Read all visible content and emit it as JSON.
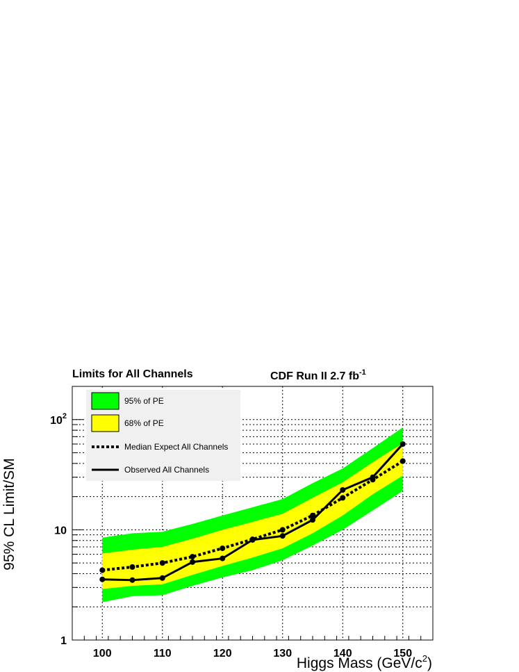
{
  "chart_data": {
    "type": "line",
    "title_left": "Limits for All Channels",
    "title_right": "CDF Run II  2.7 fb",
    "title_right_sup": "-1",
    "xlabel": "Higgs Mass (GeV/c",
    "xlabel_sup": "2",
    "xlabel_end": ")",
    "ylabel": "95% CL Limit/SM",
    "xlim": [
      95,
      155
    ],
    "ylim": [
      1,
      200
    ],
    "ylog": true,
    "grid": true,
    "x_ticks": [
      100,
      110,
      120,
      130,
      140,
      150
    ],
    "y_ticks": [
      {
        "value": 1,
        "base": "1",
        "sup": ""
      },
      {
        "value": 10,
        "base": "10",
        "sup": ""
      },
      {
        "value": 100,
        "base": "10",
        "sup": "2"
      }
    ],
    "x": [
      100,
      105,
      110,
      115,
      120,
      125,
      130,
      135,
      140,
      145,
      150
    ],
    "band95": {
      "lo": [
        2.2,
        2.5,
        2.55,
        3.1,
        3.7,
        4.3,
        5.3,
        7.2,
        10.0,
        15.0,
        22.5
      ],
      "hi": [
        8.5,
        9.3,
        9.6,
        11.3,
        13.5,
        16.0,
        19.0,
        26.5,
        36.0,
        55.0,
        85.0
      ]
    },
    "band68": {
      "lo": [
        2.9,
        3.1,
        3.2,
        3.9,
        4.7,
        5.6,
        6.8,
        9.3,
        13.5,
        21.0,
        31.0
      ],
      "hi": [
        6.1,
        6.6,
        7.0,
        8.3,
        10.0,
        11.8,
        14.0,
        19.5,
        27.0,
        41.0,
        61.0
      ]
    },
    "series": [
      {
        "name": "Median Expect All Channels",
        "style": "dotted",
        "values": [
          4.3,
          4.6,
          5.0,
          5.7,
          6.8,
          8.2,
          10.0,
          13.5,
          19.5,
          28.5,
          42.0
        ]
      },
      {
        "name": "Observed All Channels",
        "style": "solid",
        "values": [
          3.55,
          3.5,
          3.65,
          5.1,
          5.5,
          8.1,
          8.8,
          12.3,
          23.0,
          30.0,
          60.0
        ]
      }
    ],
    "legend": {
      "placement": "top-left",
      "entries": [
        {
          "label": "95% of PE",
          "color": "#00ff00"
        },
        {
          "label": "68% of PE",
          "color": "#ffff00"
        },
        {
          "label": "Median Expect All Channels"
        },
        {
          "label": "Observed All Channels"
        }
      ]
    },
    "colors": {
      "band95": "#00ff00",
      "band68": "#ffff00",
      "line": "#000000",
      "legend_bg": "#f0f0f0"
    }
  }
}
